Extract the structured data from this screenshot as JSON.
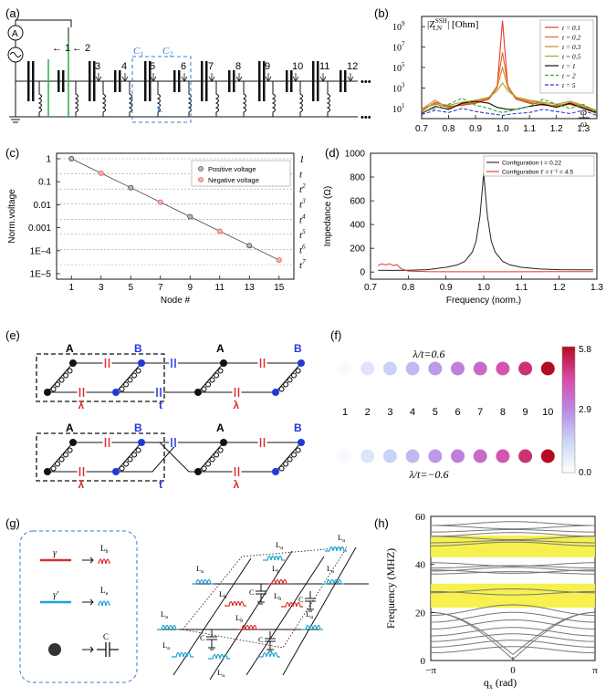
{
  "panel_labels": {
    "a": "(a)",
    "b": "(b)",
    "c": "(c)",
    "d": "(d)",
    "e": "(e)",
    "f": "(f)",
    "g": "(g)",
    "h": "(h)"
  },
  "panel_a": {
    "ammeter": "A",
    "nodes": [
      "1",
      "2",
      "3",
      "4",
      "5",
      "6",
      "7",
      "8",
      "9",
      "10",
      "11",
      "12"
    ],
    "cell_labels": {
      "c1": "C",
      "c1_sub": "1",
      "c2": "C",
      "c2_sub": "2",
      "l": "L"
    },
    "ellipsis": "•••"
  },
  "chart_data": [
    {
      "id": "b",
      "type": "line",
      "ylabel": "|Z",
      "ylabel_sup": "SSH",
      "ylabel_sub": "1,N",
      "ylabel_unit": "| [Ohm]",
      "xlabel_num": "ω",
      "xlabel_den": "ω",
      "x_ticks": [
        "0.7",
        "0.8",
        "0.9",
        "1.0",
        "1.1",
        "1.2",
        "1.3"
      ],
      "xlim": [
        0.7,
        1.35
      ],
      "y_ticks": [
        "10",
        "10",
        "10",
        "10",
        "10"
      ],
      "y_tick_exps": [
        "9",
        "7",
        "5",
        "3",
        "1"
      ],
      "ylog_range": [
        0,
        10
      ],
      "legend": [
        {
          "label": "t = 0.1",
          "color": "#e8352b",
          "dash": ""
        },
        {
          "label": "t = 0.2",
          "color": "#e06b1e",
          "dash": ""
        },
        {
          "label": "t = 0.3",
          "color": "#c98b2a",
          "dash": ""
        },
        {
          "label": "t = 0.5",
          "color": "#a9a52e",
          "dash": ""
        },
        {
          "label": "t = 1",
          "color": "#111111",
          "dash": ""
        },
        {
          "label": "t = 2",
          "color": "#3aa53a",
          "dash": "4,2"
        },
        {
          "label": "t = 5",
          "color": "#2b3ec9",
          "dash": "4,2"
        }
      ],
      "series": [
        {
          "name": "t = 0.1",
          "x": [
            0.7,
            0.75,
            0.8,
            0.85,
            0.9,
            0.95,
            0.98,
            1.0,
            1.02,
            1.05,
            1.1,
            1.15,
            1.2,
            1.25,
            1.3,
            1.35
          ],
          "log_y": [
            0.7,
            1.6,
            1.2,
            1.3,
            1.5,
            1.9,
            3.0,
            9.6,
            3.0,
            1.9,
            1.5,
            1.4,
            1.2,
            1.4,
            1.0,
            0.5
          ]
        },
        {
          "name": "t = 0.2",
          "x": [
            0.7,
            0.75,
            0.8,
            0.85,
            0.9,
            0.95,
            0.98,
            1.0,
            1.02,
            1.05,
            1.1,
            1.15,
            1.2,
            1.25,
            1.3,
            1.35
          ],
          "log_y": [
            1.0,
            1.4,
            1.1,
            1.4,
            1.6,
            2.0,
            3.2,
            6.5,
            3.2,
            2.0,
            1.6,
            1.3,
            1.3,
            1.5,
            1.1,
            0.6
          ]
        },
        {
          "name": "t = 0.3",
          "x": [
            0.7,
            0.75,
            0.8,
            0.85,
            0.9,
            0.95,
            0.98,
            1.0,
            1.02,
            1.05,
            1.1,
            1.15,
            1.2,
            1.25,
            1.3,
            1.35
          ],
          "log_y": [
            0.9,
            1.8,
            1.0,
            1.5,
            1.7,
            2.1,
            3.0,
            5.0,
            3.0,
            2.1,
            1.7,
            1.5,
            1.2,
            1.6,
            1.2,
            0.7
          ]
        },
        {
          "name": "t = 0.5",
          "x": [
            0.7,
            0.75,
            0.8,
            0.85,
            0.9,
            0.95,
            0.98,
            1.0,
            1.02,
            1.05,
            1.1,
            1.15,
            1.2,
            1.25,
            1.3,
            1.35
          ],
          "log_y": [
            0.8,
            1.5,
            1.3,
            1.6,
            1.8,
            2.1,
            2.7,
            3.5,
            2.7,
            2.1,
            1.8,
            1.6,
            1.4,
            1.7,
            1.3,
            0.8
          ]
        },
        {
          "name": "t = 1",
          "x": [
            0.7,
            0.75,
            0.8,
            0.85,
            0.9,
            0.95,
            0.98,
            1.0,
            1.02,
            1.05,
            1.1,
            1.15,
            1.2,
            1.25,
            1.3,
            1.35
          ],
          "log_y": [
            0.5,
            1.2,
            0.9,
            1.5,
            1.7,
            1.5,
            1.1,
            1.0,
            0.9,
            0.9,
            1.2,
            1.4,
            1.1,
            1.5,
            1.0,
            0.6
          ]
        },
        {
          "name": "t = 2",
          "x": [
            0.7,
            0.75,
            0.8,
            0.85,
            0.9,
            0.95,
            0.98,
            1.0,
            1.02,
            1.05,
            1.1,
            1.15,
            1.2,
            1.25,
            1.3,
            1.35
          ],
          "log_y": [
            0.6,
            1.0,
            1.4,
            2.0,
            1.3,
            1.0,
            0.7,
            0.6,
            0.7,
            0.9,
            1.2,
            1.9,
            1.4,
            1.0,
            1.4,
            0.5
          ]
        },
        {
          "name": "t = 5",
          "x": [
            0.7,
            0.75,
            0.8,
            0.85,
            0.9,
            0.95,
            0.98,
            1.0,
            1.02,
            1.05,
            1.1,
            1.15,
            1.2,
            1.25,
            1.3,
            1.35
          ],
          "log_y": [
            0.4,
            0.8,
            0.6,
            1.0,
            0.7,
            0.5,
            0.4,
            0.3,
            0.4,
            0.5,
            0.6,
            0.9,
            0.7,
            0.5,
            0.8,
            0.3
          ]
        }
      ]
    },
    {
      "id": "c",
      "type": "scatter",
      "xlabel": "Node #",
      "ylabel": "Norm.voltage",
      "x_ticks": [
        "1",
        "3",
        "5",
        "7",
        "9",
        "11",
        "13",
        "15"
      ],
      "xlim": [
        0,
        16
      ],
      "y_ticks": [
        "1",
        "0.1",
        "0.01",
        "0.001",
        "1E–4",
        "1E–5"
      ],
      "ylim_log10": [
        -5,
        0
      ],
      "right_ticks": [
        "1",
        "t",
        "t",
        "t",
        "t",
        "t",
        "t",
        "t"
      ],
      "right_exps": [
        "",
        "",
        "2",
        "3",
        "4",
        "5",
        "6",
        "7"
      ],
      "legend": [
        {
          "label": "Positive voltage",
          "color": "#555555"
        },
        {
          "label": "Negative voltage",
          "color": "#e35b5b"
        }
      ],
      "positive": {
        "x": [
          1,
          5,
          9,
          13
        ],
        "y": [
          1,
          0.05,
          0.0025,
          0.000125
        ]
      },
      "negative": {
        "x": [
          3,
          7,
          11,
          15
        ],
        "y": [
          0.2236,
          0.01118,
          0.000559,
          2.8e-05
        ]
      }
    },
    {
      "id": "d",
      "type": "line",
      "xlabel": "Frequency (norm.)",
      "ylabel": "Impedance (Ω)",
      "x_ticks": [
        "0.7",
        "0.8",
        "0.9",
        "1.0",
        "1.1",
        "1.2",
        "1.3"
      ],
      "xlim": [
        0.7,
        1.3
      ],
      "y_ticks": [
        "0",
        "200",
        "400",
        "600",
        "800",
        "1000"
      ],
      "ylim": [
        -60,
        1000
      ],
      "legend": [
        {
          "label": "Configuration t = 0.22",
          "color": "#222222"
        },
        {
          "label": "Configuration t′ = t⁻¹ = 4.5",
          "color": "#e8352b"
        }
      ],
      "series": [
        {
          "name": "Configuration t = 0.22",
          "x": [
            0.72,
            0.75,
            0.8,
            0.85,
            0.9,
            0.93,
            0.95,
            0.97,
            0.98,
            0.99,
            1.0,
            1.01,
            1.02,
            1.03,
            1.05,
            1.07,
            1.1,
            1.15,
            1.2,
            1.25,
            1.29
          ],
          "y": [
            15,
            14,
            15,
            20,
            40,
            60,
            90,
            170,
            260,
            470,
            830,
            470,
            260,
            170,
            90,
            60,
            40,
            25,
            20,
            18,
            18
          ]
        },
        {
          "name": "Configuration t′",
          "x": [
            0.72,
            0.73,
            0.74,
            0.75,
            0.76,
            0.77,
            0.78,
            0.8,
            0.85,
            0.9,
            1.0,
            1.1,
            1.2,
            1.25,
            1.29
          ],
          "y": [
            55,
            70,
            60,
            70,
            55,
            62,
            30,
            8,
            3,
            2,
            2,
            2,
            3,
            4,
            4
          ]
        }
      ]
    },
    {
      "id": "h",
      "type": "line",
      "xlabel": "q",
      "xlabel_sub": "x",
      "xlabel_unit": " (rad)",
      "ylabel": "Frequency (MHZ)",
      "x_ticks": [
        "−π",
        "0",
        "π"
      ],
      "xlim": [
        -3.1416,
        3.1416
      ],
      "y_ticks": [
        "0",
        "20",
        "40",
        "60"
      ],
      "ylim": [
        0,
        60
      ],
      "bandgaps": [
        [
          22,
          32
        ],
        [
          43,
          52
        ]
      ],
      "bands_upper": [
        57,
        55.5,
        54,
        52.5,
        51,
        49.5,
        48.5,
        40,
        39,
        38,
        37,
        36.5,
        29,
        28
      ],
      "bands_lower": [
        21,
        18,
        15,
        12,
        9.5,
        7,
        4.5,
        2.5,
        0.5
      ]
    }
  ],
  "panel_e": {
    "top": {
      "A1": "A",
      "B1": "B",
      "A2": "A",
      "B2": "B",
      "lambda1": "λ",
      "t": "t",
      "lambda2": "λ"
    },
    "bottom": {
      "A1": "A",
      "B1": "B",
      "A2": "A",
      "B2": "B",
      "lambda1": "λ",
      "t": "t",
      "lambda2": "λ"
    }
  },
  "panel_f": {
    "top_label": "λ/t=0.6",
    "bottom_label": "λ/t=−0.6",
    "indices": [
      "1",
      "2",
      "3",
      "4",
      "5",
      "6",
      "7",
      "8",
      "9",
      "10"
    ],
    "top_values": [
      0.2,
      0.9,
      1.5,
      2.0,
      2.6,
      3.1,
      3.6,
      4.1,
      4.9,
      5.8
    ],
    "bottom_values": [
      0.2,
      0.9,
      1.5,
      2.0,
      2.6,
      3.1,
      3.6,
      4.1,
      4.9,
      5.8
    ],
    "scale": [
      "5.8",
      "2.9",
      "0.0"
    ],
    "scale_range": [
      0,
      5.8
    ]
  },
  "panel_g": {
    "legend": [
      {
        "symbol": "γ",
        "target": "L",
        "target_sub": "b",
        "color": "#e02a2a"
      },
      {
        "symbol": "γ′",
        "target": "L",
        "target_sub": "a",
        "color": "#1ca3d9"
      },
      {
        "symbol": "",
        "target": "C",
        "target_sub": "",
        "color": "#333333"
      }
    ],
    "circuit_labels": {
      "la": "L",
      "la_sub": "a",
      "lb": "L",
      "lb_sub": "b",
      "c": "C"
    }
  }
}
